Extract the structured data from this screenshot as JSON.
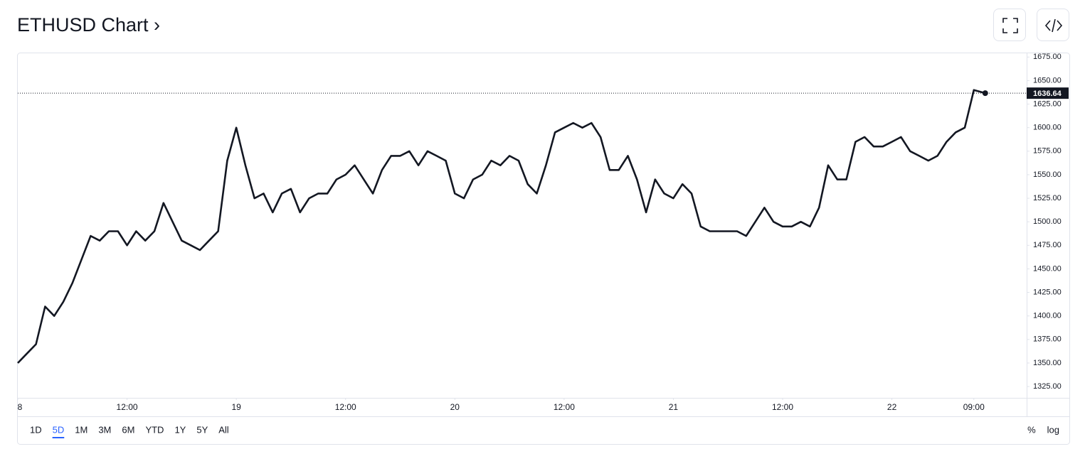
{
  "chart_data": {
    "type": "line",
    "title": "ETHUSD Chart ›",
    "x": [
      0,
      1,
      2,
      3,
      4,
      5,
      6,
      7,
      8,
      9,
      10,
      11,
      12,
      13,
      14,
      15,
      16,
      17,
      18,
      19,
      20,
      21,
      22,
      23,
      24,
      25,
      26,
      27,
      28,
      29,
      30,
      31,
      32,
      33,
      34,
      35,
      36,
      37,
      38,
      39,
      40,
      41,
      42,
      43,
      44,
      45,
      46,
      47,
      48,
      49,
      50,
      51,
      52,
      53,
      54,
      55,
      56,
      57,
      58,
      59,
      60,
      61,
      62,
      63,
      64,
      65,
      66,
      67,
      68,
      69,
      70,
      71,
      72,
      73,
      74,
      75,
      76,
      77,
      78,
      79,
      80,
      81,
      82,
      83,
      84,
      85,
      86,
      87,
      88,
      89,
      90,
      91,
      92,
      93,
      94,
      95,
      96,
      97,
      98,
      99,
      100,
      101,
      102,
      103,
      104,
      105,
      106.25
    ],
    "series": [
      {
        "name": "ETHUSD",
        "color": "#131722",
        "values": [
          1350,
          1360,
          1370,
          1410,
          1400,
          1415,
          1435,
          1460,
          1485,
          1480,
          1490,
          1490,
          1475,
          1490,
          1480,
          1490,
          1520,
          1500,
          1480,
          1475,
          1470,
          1480,
          1490,
          1565,
          1600,
          1560,
          1525,
          1530,
          1510,
          1530,
          1535,
          1510,
          1525,
          1530,
          1530,
          1545,
          1550,
          1560,
          1545,
          1530,
          1555,
          1570,
          1570,
          1575,
          1560,
          1575,
          1570,
          1565,
          1530,
          1525,
          1545,
          1550,
          1565,
          1560,
          1570,
          1565,
          1540,
          1530,
          1560,
          1595,
          1600,
          1605,
          1600,
          1605,
          1590,
          1555,
          1555,
          1570,
          1545,
          1510,
          1545,
          1530,
          1525,
          1540,
          1530,
          1495,
          1490,
          1490,
          1490,
          1490,
          1485,
          1500,
          1515,
          1500,
          1495,
          1495,
          1500,
          1495,
          1515,
          1560,
          1545,
          1545,
          1585,
          1590,
          1580,
          1580,
          1585,
          1590,
          1575,
          1570,
          1565,
          1570,
          1585,
          1595,
          1600,
          1640,
          1636.64
        ]
      }
    ],
    "last_value": 1636.64,
    "xlim": [
      0,
      110.8
    ],
    "xticks": [
      {
        "value": 0,
        "label": "8"
      },
      {
        "value": 12,
        "label": "12:00"
      },
      {
        "value": 24,
        "label": "19"
      },
      {
        "value": 36,
        "label": "12:00"
      },
      {
        "value": 48,
        "label": "20"
      },
      {
        "value": 60,
        "label": "12:00"
      },
      {
        "value": 72,
        "label": "21"
      },
      {
        "value": 84,
        "label": "12:00"
      },
      {
        "value": 96,
        "label": "22"
      },
      {
        "value": 105,
        "label": "09:00"
      }
    ],
    "ylim": [
      1313,
      1679
    ],
    "yticks": [
      {
        "value": 1325,
        "label": "1325.00"
      },
      {
        "value": 1350,
        "label": "1350.00"
      },
      {
        "value": 1375,
        "label": "1375.00"
      },
      {
        "value": 1400,
        "label": "1400.00"
      },
      {
        "value": 1425,
        "label": "1425.00"
      },
      {
        "value": 1450,
        "label": "1450.00"
      },
      {
        "value": 1475,
        "label": "1475.00"
      },
      {
        "value": 1500,
        "label": "1500.00"
      },
      {
        "value": 1525,
        "label": "1525.00"
      },
      {
        "value": 1550,
        "label": "1550.00"
      },
      {
        "value": 1575,
        "label": "1575.00"
      },
      {
        "value": 1600,
        "label": "1600.00"
      },
      {
        "value": 1625,
        "label": "1625.00"
      },
      {
        "value": 1650,
        "label": "1650.00"
      },
      {
        "value": 1675,
        "label": "1675.00"
      }
    ],
    "grid": false,
    "ranges": [
      "1D",
      "5D",
      "1M",
      "3M",
      "6M",
      "YTD",
      "1Y",
      "5Y",
      "All"
    ],
    "active_range_index": 1,
    "scale_buttons": [
      "%",
      "log"
    ]
  }
}
